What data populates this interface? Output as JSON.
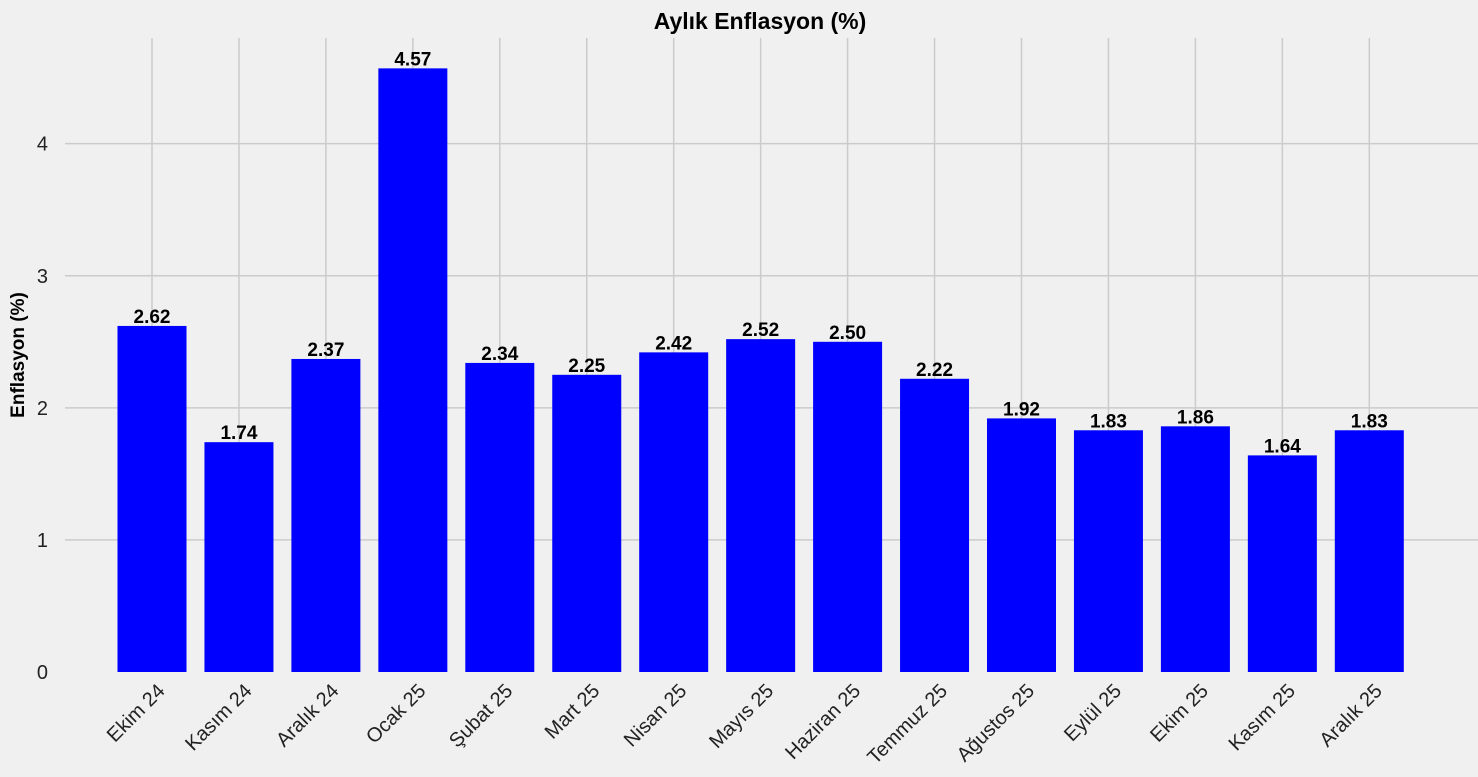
{
  "chart_data": {
    "type": "bar",
    "title": "Aylık Enflasyon (%)",
    "xlabel": "",
    "ylabel": "Enflasyon (%)",
    "categories": [
      "Ekim 24",
      "Kasım 24",
      "Aralık 24",
      "Ocak 25",
      "Şubat 25",
      "Mart 25",
      "Nisan 25",
      "Mayıs 25",
      "Haziran 25",
      "Temmuz 25",
      "Ağustos 25",
      "Eylül 25",
      "Ekim 25",
      "Kasım 25",
      "Aralık 25"
    ],
    "values": [
      2.62,
      1.74,
      2.37,
      4.57,
      2.34,
      2.25,
      2.42,
      2.52,
      2.5,
      2.22,
      1.92,
      1.83,
      1.86,
      1.64,
      1.83
    ],
    "value_labels": [
      "2.62",
      "1.74",
      "2.37",
      "4.57",
      "2.34",
      "2.25",
      "2.42",
      "2.52",
      "2.50",
      "2.22",
      "1.92",
      "1.83",
      "1.86",
      "1.64",
      "1.83"
    ],
    "yticks": [
      0,
      1,
      2,
      3,
      4
    ],
    "ylim": [
      0,
      4.8
    ],
    "grid": true,
    "bar_color": "#0000ff",
    "background_color": "#f0f0f0",
    "grid_color": "#cbcbcb"
  }
}
